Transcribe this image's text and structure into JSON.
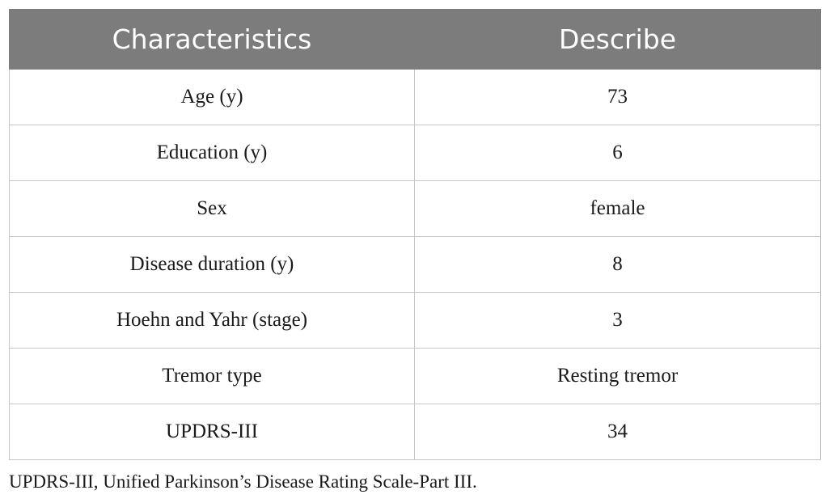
{
  "table": {
    "headers": [
      "Characteristics",
      "Describe"
    ],
    "rows": [
      [
        "Age (y)",
        "73"
      ],
      [
        "Education (y)",
        "6"
      ],
      [
        "Sex",
        "female"
      ],
      [
        "Disease duration (y)",
        "8"
      ],
      [
        "Hoehn and Yahr (stage)",
        "3"
      ],
      [
        "Tremor type",
        "Resting tremor"
      ],
      [
        "UPDRS-III",
        "34"
      ]
    ]
  },
  "footnote": "UPDRS-III, Unified Parkinson’s Disease Rating Scale-Part III.",
  "colors": {
    "header_bg": "#7b7c7b",
    "header_text": "#ffffff",
    "grid": "#c6c6c6",
    "body_text": "#1a1a1a"
  }
}
